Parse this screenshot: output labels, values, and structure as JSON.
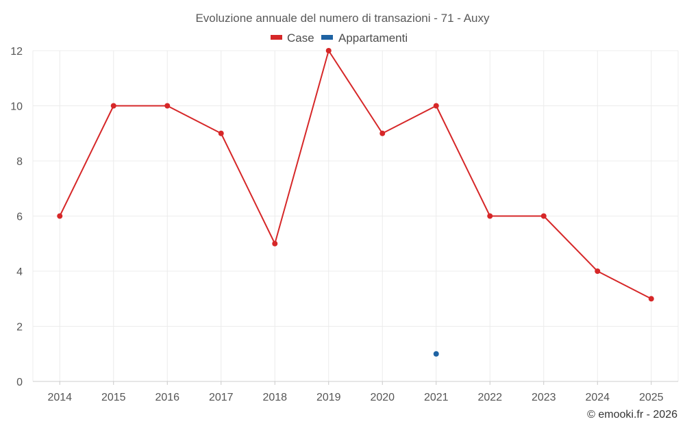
{
  "chart_data": {
    "type": "line",
    "title": "Evoluzione annuale del numero di transazioni - 71 - Auxy",
    "categories": [
      "2014",
      "2015",
      "2016",
      "2017",
      "2018",
      "2019",
      "2020",
      "2021",
      "2022",
      "2023",
      "2024",
      "2025"
    ],
    "series": [
      {
        "name": "Case",
        "color": "#d62728",
        "values": [
          6,
          10,
          10,
          9,
          5,
          12,
          9,
          10,
          6,
          6,
          4,
          3
        ]
      },
      {
        "name": "Appartamenti",
        "color": "#1f63a3",
        "values": [
          null,
          null,
          null,
          null,
          null,
          null,
          null,
          1,
          null,
          null,
          null,
          null
        ]
      }
    ],
    "ylim": [
      0,
      12
    ],
    "yticks": [
      0,
      2,
      4,
      6,
      8,
      10,
      12
    ],
    "grid": true,
    "legend_position": "top-center"
  },
  "credit": "© emooki.fr - 2026"
}
